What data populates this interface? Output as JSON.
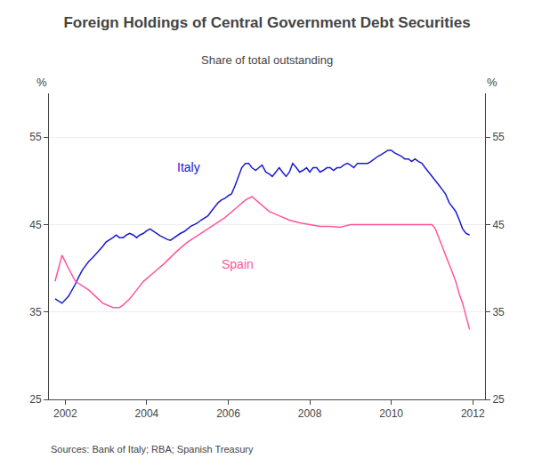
{
  "chart_data": {
    "type": "line",
    "title": "Foreign Holdings of Central Government Debt Securities",
    "subtitle": "Share of total outstanding",
    "ylabel": "%",
    "y2label": "%",
    "source": "Sources: Bank of Italy; RBA; Spanish Treasury",
    "xlim": [
      2001.6,
      2012.3
    ],
    "xticks": [
      2002,
      2004,
      2006,
      2008,
      2010,
      2012
    ],
    "ylim": [
      25,
      60
    ],
    "yticks": [
      25,
      35,
      45,
      55
    ],
    "y2lim": [
      25,
      60
    ],
    "y2ticks": [
      25,
      35,
      45,
      55
    ],
    "grid": "y",
    "series": [
      {
        "name": "Italy",
        "color": "#1a1acd",
        "x": [
          2001.75,
          2001.92,
          2002.08,
          2002.17,
          2002.25,
          2002.33,
          2002.42,
          2002.5,
          2002.58,
          2002.67,
          2002.75,
          2002.83,
          2002.92,
          2003.0,
          2003.08,
          2003.17,
          2003.25,
          2003.33,
          2003.42,
          2003.5,
          2003.58,
          2003.67,
          2003.75,
          2003.83,
          2003.92,
          2004.0,
          2004.08,
          2004.17,
          2004.25,
          2004.33,
          2004.42,
          2004.5,
          2004.58,
          2004.67,
          2004.75,
          2004.83,
          2004.92,
          2005.0,
          2005.08,
          2005.17,
          2005.25,
          2005.33,
          2005.42,
          2005.5,
          2005.58,
          2005.67,
          2005.75,
          2005.83,
          2005.92,
          2006.0,
          2006.08,
          2006.17,
          2006.25,
          2006.33,
          2006.42,
          2006.5,
          2006.58,
          2006.67,
          2006.75,
          2006.83,
          2006.92,
          2007.0,
          2007.08,
          2007.17,
          2007.25,
          2007.33,
          2007.42,
          2007.5,
          2007.58,
          2007.67,
          2007.75,
          2007.83,
          2007.92,
          2008.0,
          2008.08,
          2008.17,
          2008.25,
          2008.33,
          2008.42,
          2008.5,
          2008.58,
          2008.67,
          2008.75,
          2008.83,
          2008.92,
          2009.0,
          2009.08,
          2009.17,
          2009.25,
          2009.33,
          2009.42,
          2009.5,
          2009.58,
          2009.67,
          2009.75,
          2009.83,
          2009.92,
          2010.0,
          2010.08,
          2010.17,
          2010.25,
          2010.33,
          2010.42,
          2010.5,
          2010.58,
          2010.67,
          2010.75,
          2010.83,
          2010.92,
          2011.0,
          2011.08,
          2011.17,
          2011.25,
          2011.33,
          2011.42,
          2011.5,
          2011.58,
          2011.67,
          2011.75,
          2011.83,
          2011.92
        ],
        "values": [
          36.5,
          36.0,
          36.8,
          37.5,
          38.2,
          39.0,
          39.8,
          40.3,
          40.8,
          41.2,
          41.6,
          42.0,
          42.5,
          43.0,
          43.2,
          43.5,
          43.8,
          43.5,
          43.5,
          43.8,
          44.0,
          43.8,
          43.5,
          43.8,
          44.0,
          44.3,
          44.5,
          44.2,
          44.0,
          43.7,
          43.5,
          43.3,
          43.2,
          43.5,
          43.8,
          44.0,
          44.2,
          44.5,
          44.8,
          45.0,
          45.2,
          45.5,
          45.8,
          46.0,
          46.5,
          47.0,
          47.5,
          47.8,
          48.0,
          48.3,
          48.5,
          49.5,
          50.5,
          51.5,
          52.0,
          52.0,
          51.5,
          51.2,
          51.5,
          51.8,
          51.0,
          50.8,
          50.5,
          51.0,
          51.5,
          51.0,
          50.5,
          51.0,
          52.0,
          51.5,
          51.0,
          51.2,
          51.5,
          51.0,
          51.5,
          51.5,
          51.0,
          51.2,
          51.5,
          51.5,
          51.2,
          51.5,
          51.5,
          51.8,
          52.0,
          51.8,
          51.5,
          52.0,
          52.0,
          52.0,
          52.0,
          52.2,
          52.5,
          52.8,
          53.0,
          53.2,
          53.5,
          53.5,
          53.2,
          53.0,
          52.8,
          52.5,
          52.5,
          52.2,
          52.5,
          52.2,
          52.0,
          51.5,
          51.0,
          50.5,
          50.0,
          49.5,
          49.0,
          48.5,
          47.5,
          47.0,
          46.5,
          45.5,
          44.5,
          44.0,
          43.8
        ]
      },
      {
        "name": "Spain",
        "color": "#FF5599",
        "x": [
          2001.75,
          2001.92,
          2002.08,
          2002.25,
          2002.58,
          2002.92,
          2003.17,
          2003.33,
          2003.42,
          2003.58,
          2003.75,
          2003.92,
          2004.17,
          2004.42,
          2004.75,
          2005.0,
          2005.33,
          2005.67,
          2005.92,
          2006.17,
          2006.42,
          2006.58,
          2006.75,
          2007.0,
          2007.25,
          2007.5,
          2007.75,
          2008.0,
          2008.25,
          2008.5,
          2008.75,
          2009.0,
          2009.25,
          2009.5,
          2009.75,
          2010.0,
          2010.17,
          2010.33,
          2010.5,
          2010.67,
          2010.75,
          2010.83,
          2010.92,
          2011.0,
          2011.08,
          2011.17,
          2011.25,
          2011.33,
          2011.42,
          2011.5,
          2011.58,
          2011.67,
          2011.75,
          2011.83,
          2011.92
        ],
        "values": [
          38.5,
          41.5,
          40.0,
          38.5,
          37.5,
          36.0,
          35.5,
          35.5,
          35.8,
          36.5,
          37.5,
          38.5,
          39.5,
          40.5,
          42.0,
          43.0,
          44.0,
          45.0,
          45.8,
          46.8,
          47.8,
          48.2,
          47.5,
          46.5,
          46.0,
          45.5,
          45.2,
          45.0,
          44.8,
          44.8,
          44.7,
          45.0,
          45.0,
          45.0,
          45.0,
          45.0,
          45.0,
          45.0,
          45.0,
          45.0,
          45.0,
          45.0,
          45.0,
          45.0,
          44.5,
          43.5,
          42.5,
          41.5,
          40.5,
          39.5,
          38.5,
          37.0,
          36.0,
          34.5,
          33.0
        ]
      }
    ],
    "annotations": [
      {
        "text": "Italy",
        "x": 2004.7,
        "y": 50.5,
        "color": "#1a1acd"
      },
      {
        "text": "Spain",
        "x": 2005.8,
        "y": 41.5,
        "color": "#FF5599"
      }
    ]
  }
}
